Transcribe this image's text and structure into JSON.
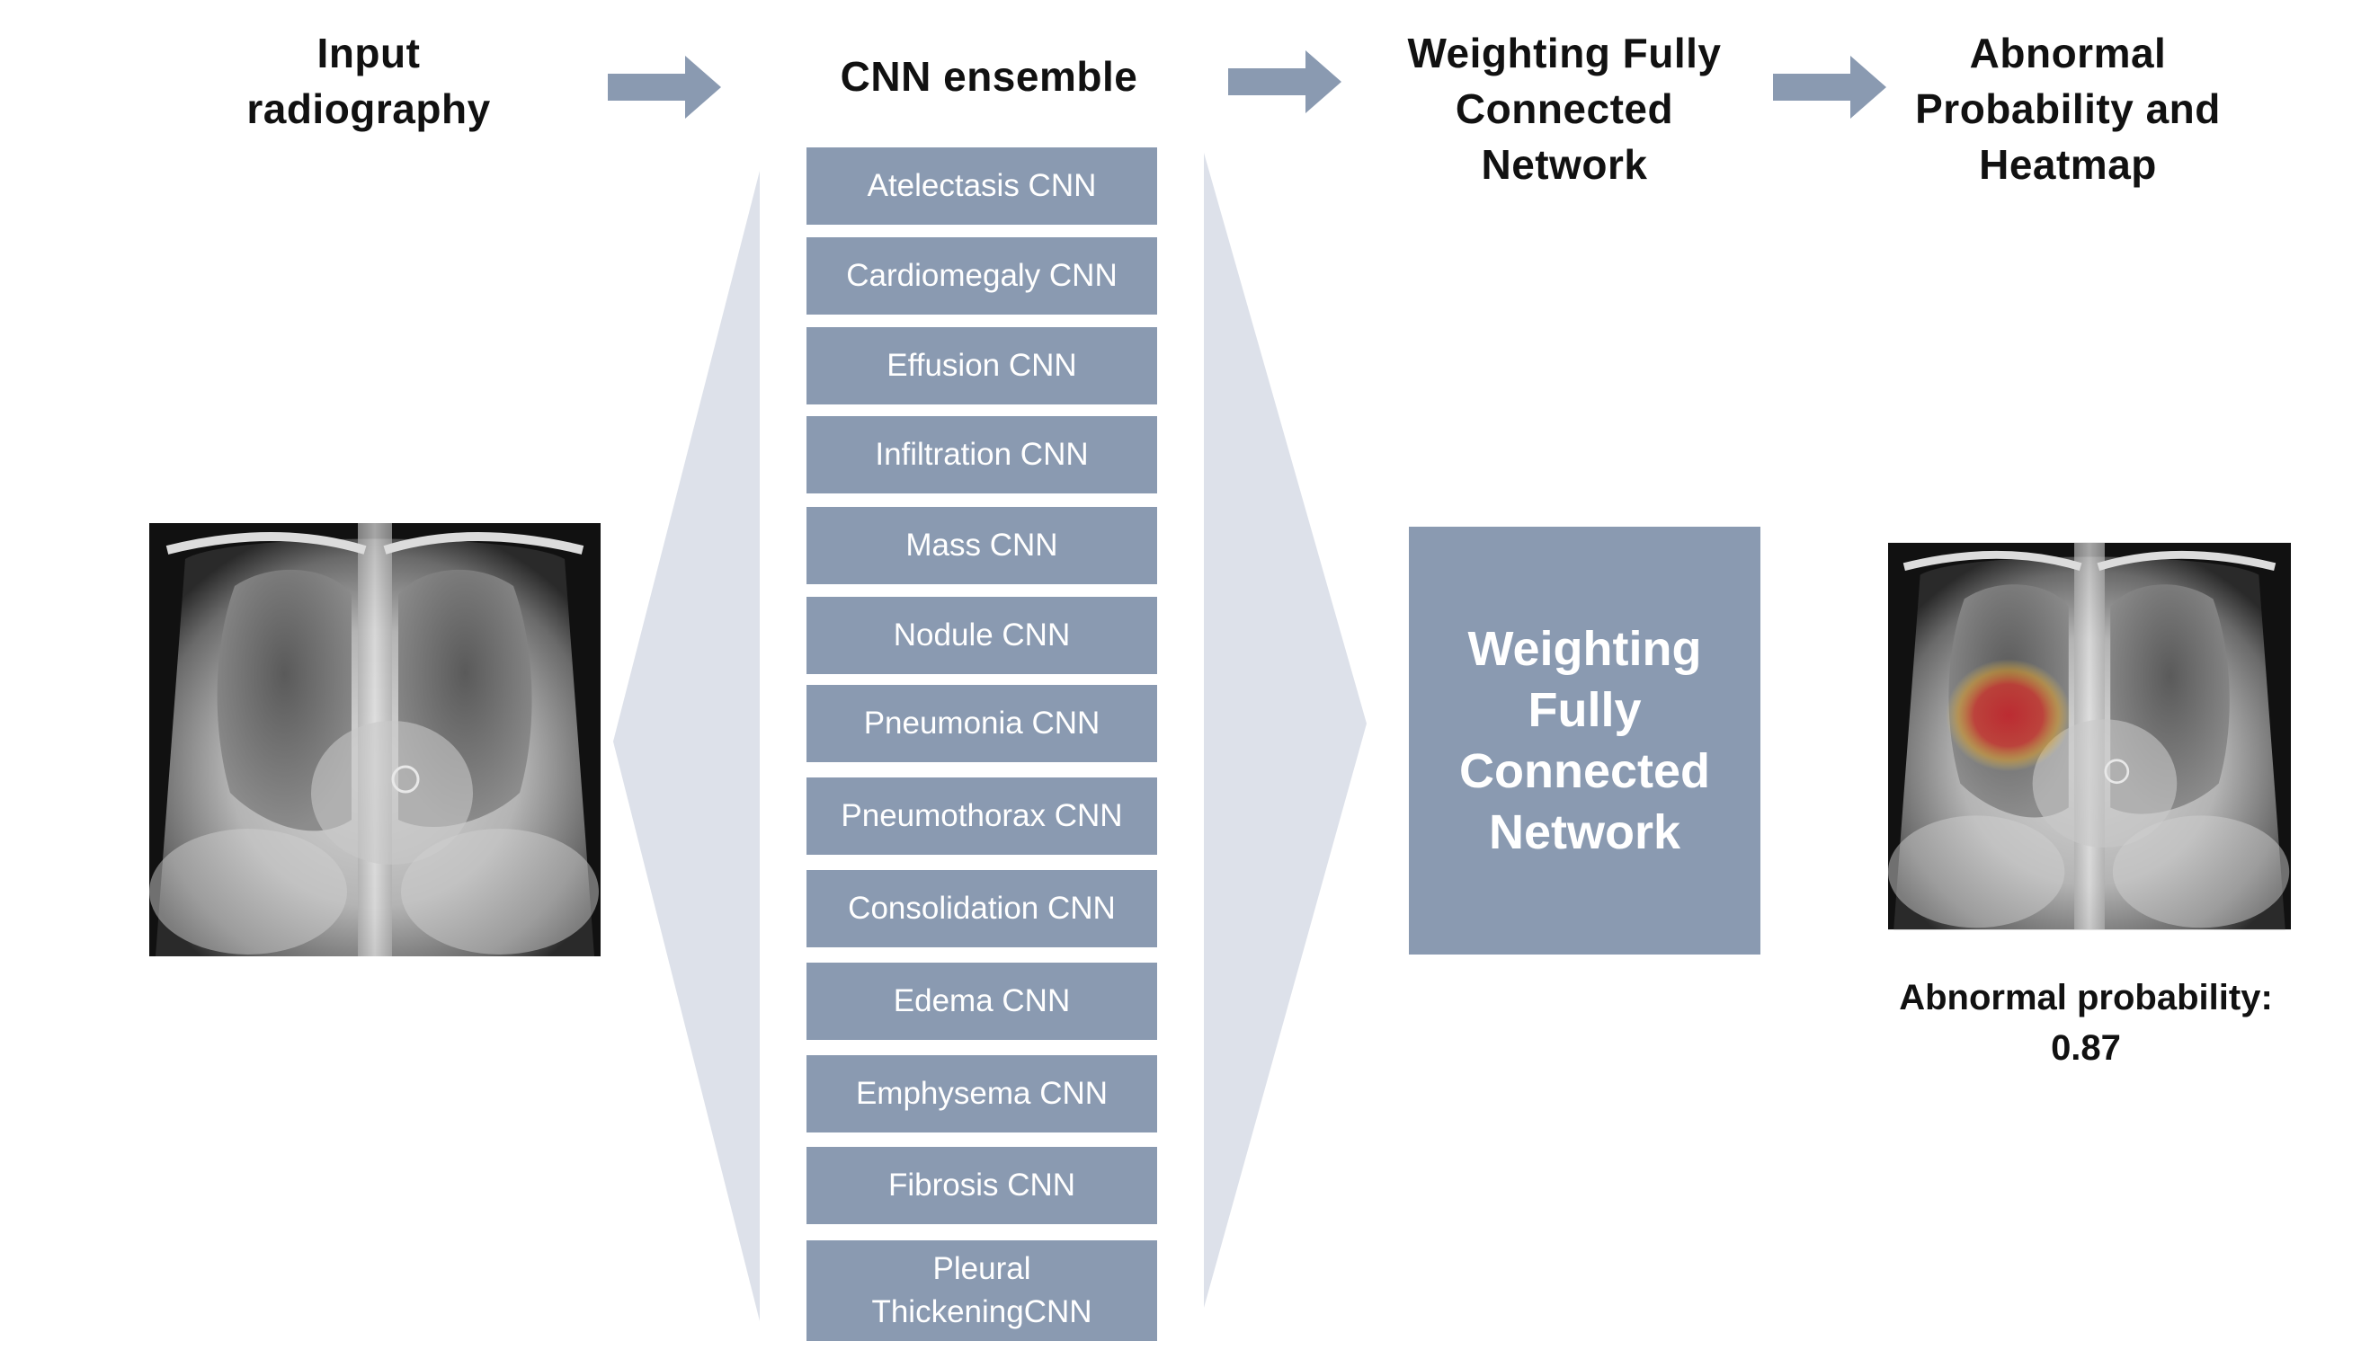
{
  "stages": {
    "input": "Input radiography",
    "ensemble": "CNN ensemble",
    "weighting": "Weighting Fully Connected Network",
    "output": "Abnormal Probability and Heatmap"
  },
  "cnns": [
    "Atelectasis CNN",
    "Cardiomegaly CNN",
    "Effusion CNN",
    "Infiltration CNN",
    "Mass CNN",
    "Nodule CNN",
    "Pneumonia CNN",
    "Pneumothorax CNN",
    "Consolidation CNN",
    "Edema CNN",
    "Emphysema CNN",
    "Fibrosis CNN",
    "Pleural ThickeningCNN"
  ],
  "network_box": "Weighting Fully Connected Network",
  "result": {
    "label": "Abnormal probability:",
    "value": "0.87"
  },
  "colors": {
    "box": "#8a9ab1",
    "arrow": "#8a9ab1",
    "funnel": "#dde1ea",
    "heatmap": "#c0282f"
  }
}
